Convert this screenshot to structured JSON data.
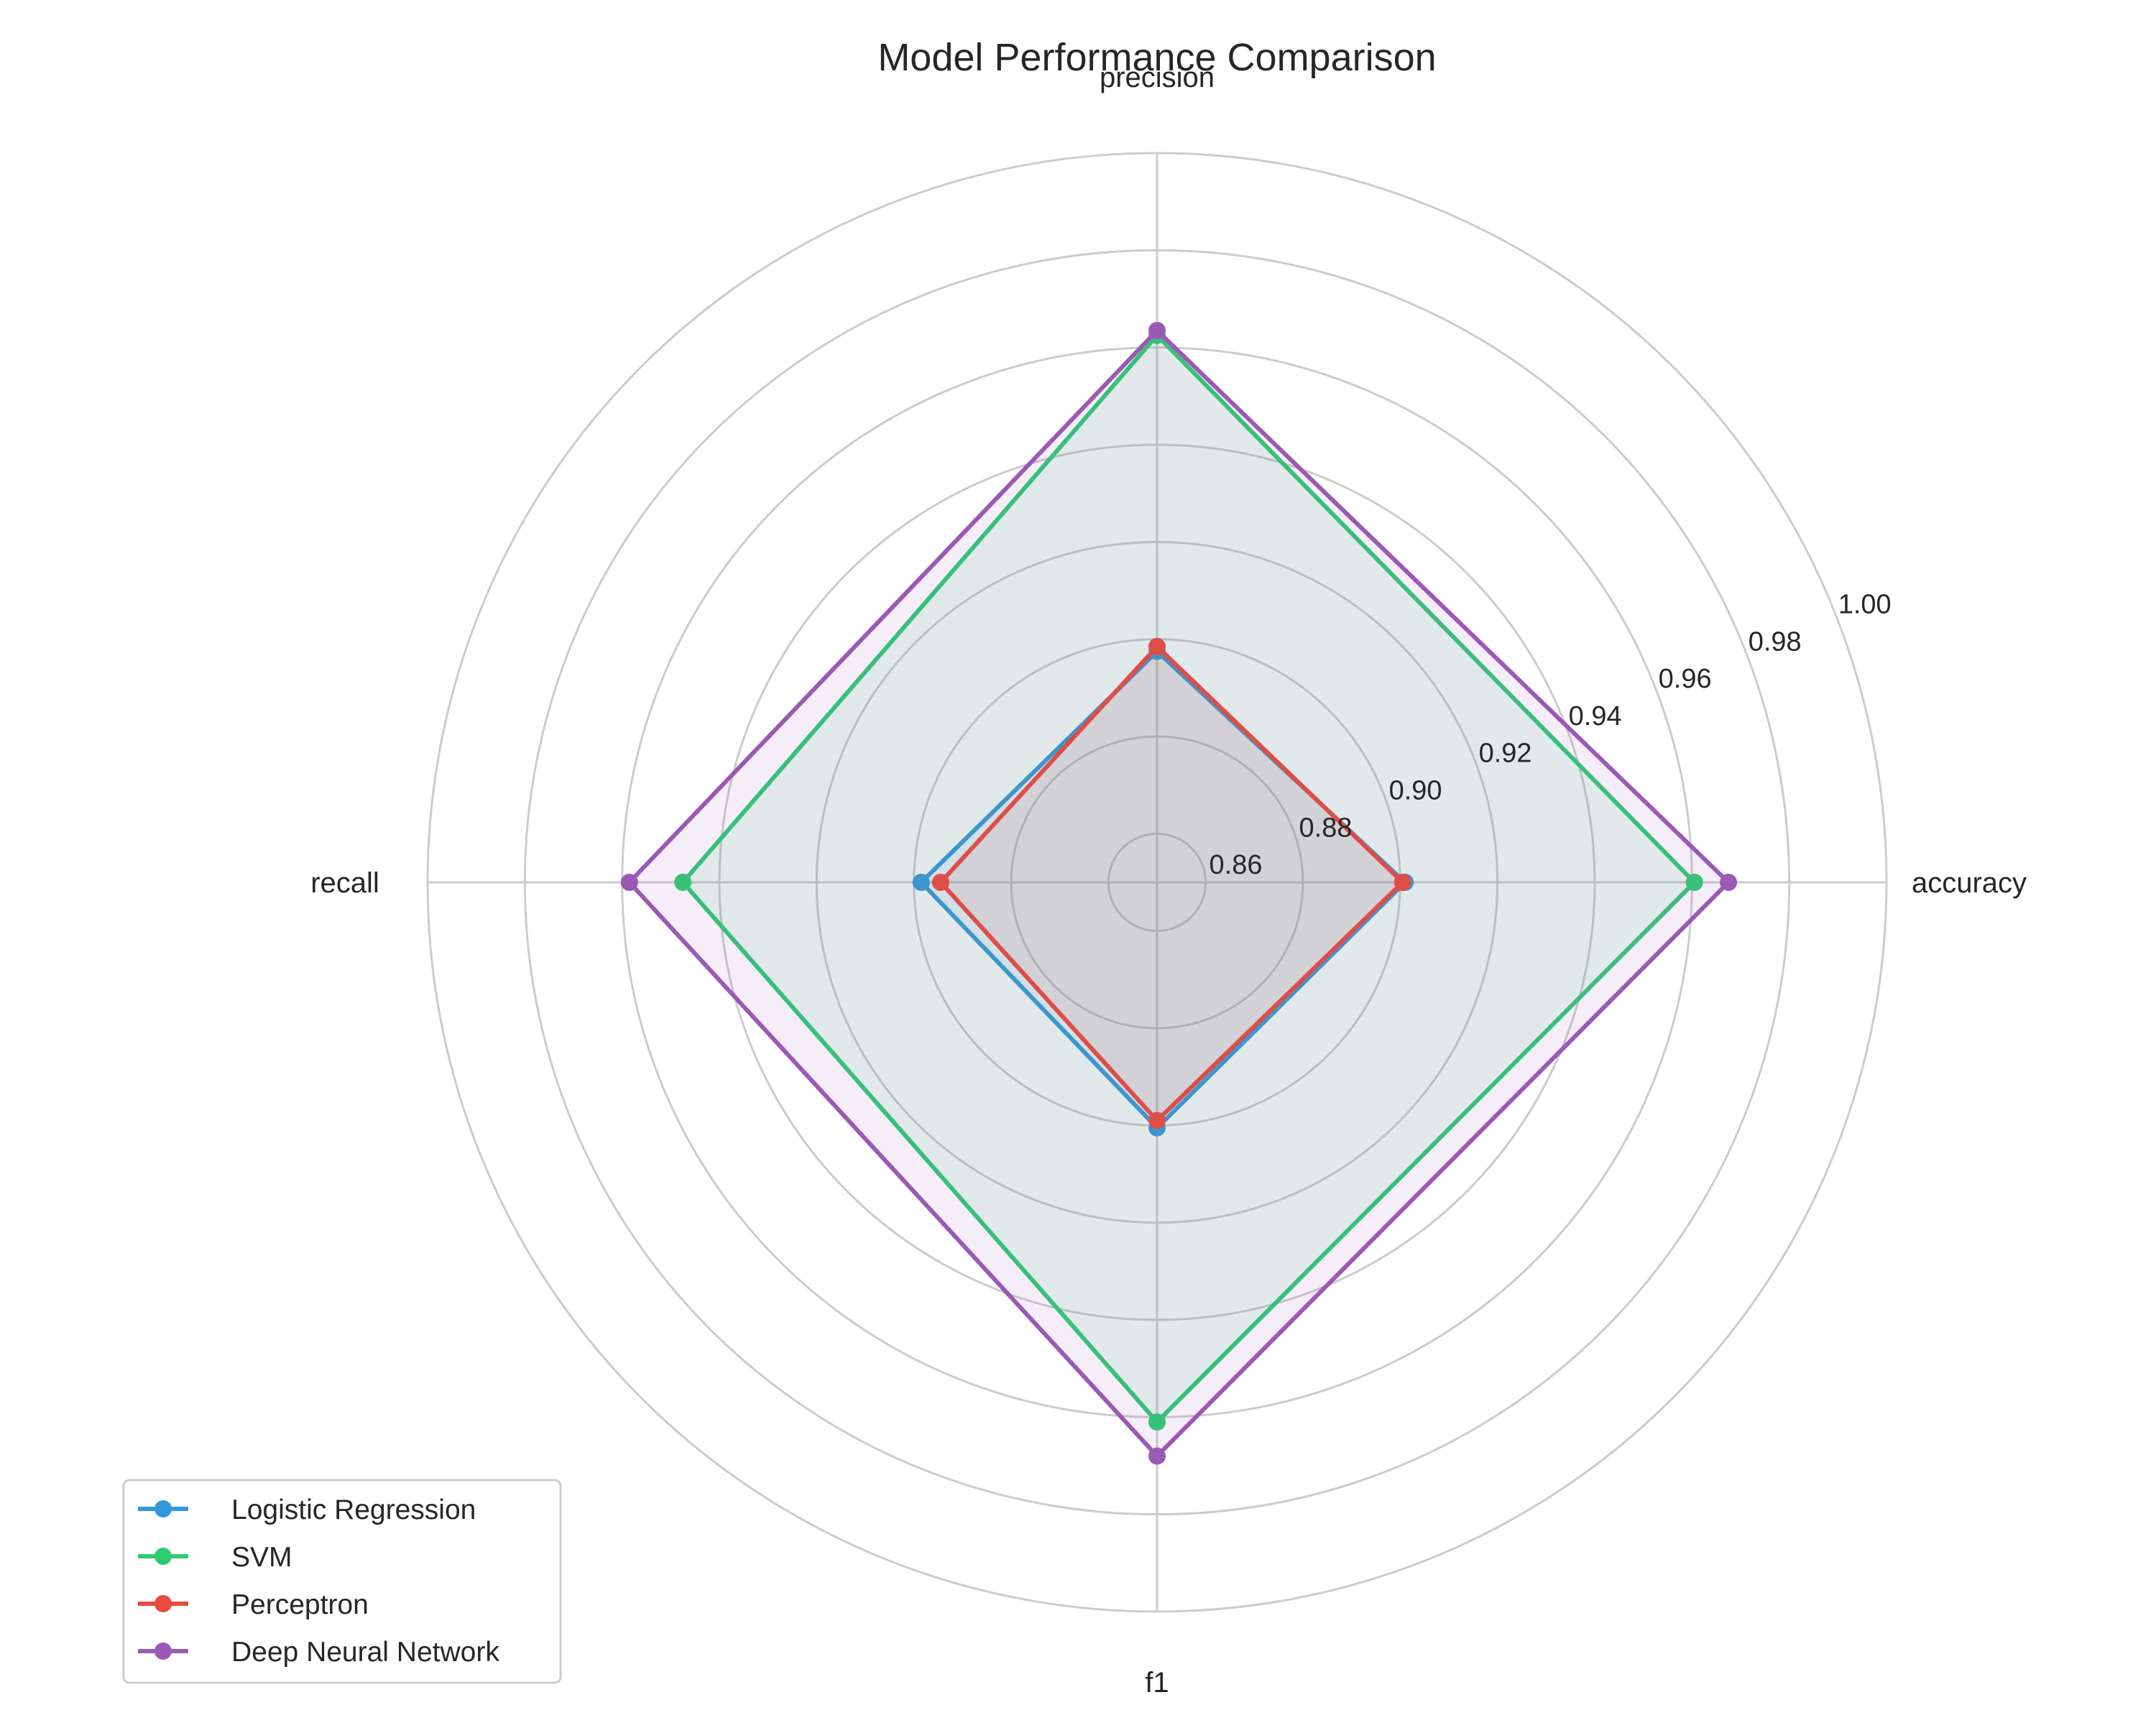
{
  "chart_data": {
    "type": "radar",
    "title": "Model Performance Comparison",
    "axes": [
      "accuracy",
      "precision",
      "recall",
      "f1"
    ],
    "rlim": [
      0.85,
      1.0
    ],
    "r_ticks": [
      0.86,
      0.88,
      0.9,
      0.92,
      0.94,
      0.96,
      0.98,
      1.0
    ],
    "r_tick_labels": [
      "0.86",
      "0.88",
      "0.90",
      "0.92",
      "0.94",
      "0.96",
      "0.98",
      "1.00"
    ],
    "grid": true,
    "legend_position": "lower-left",
    "series": [
      {
        "name": "Logistic Regression",
        "color": "#3498db",
        "values": [
          0.901,
          0.8975,
          0.8985,
          0.9005
        ]
      },
      {
        "name": "SVM",
        "color": "#2ecc71",
        "values": [
          0.9605,
          0.9625,
          0.9475,
          0.961
        ]
      },
      {
        "name": "Perceptron",
        "color": "#e74c3c",
        "values": [
          0.9005,
          0.8985,
          0.8945,
          0.899
        ]
      },
      {
        "name": "Deep Neural Network",
        "color": "#9b59b6",
        "values": [
          0.9675,
          0.9635,
          0.9585,
          0.968
        ]
      }
    ],
    "fill_colors": [
      "#3498db",
      "#2ecc71",
      "#e74c3c",
      "#9b59b6"
    ]
  }
}
